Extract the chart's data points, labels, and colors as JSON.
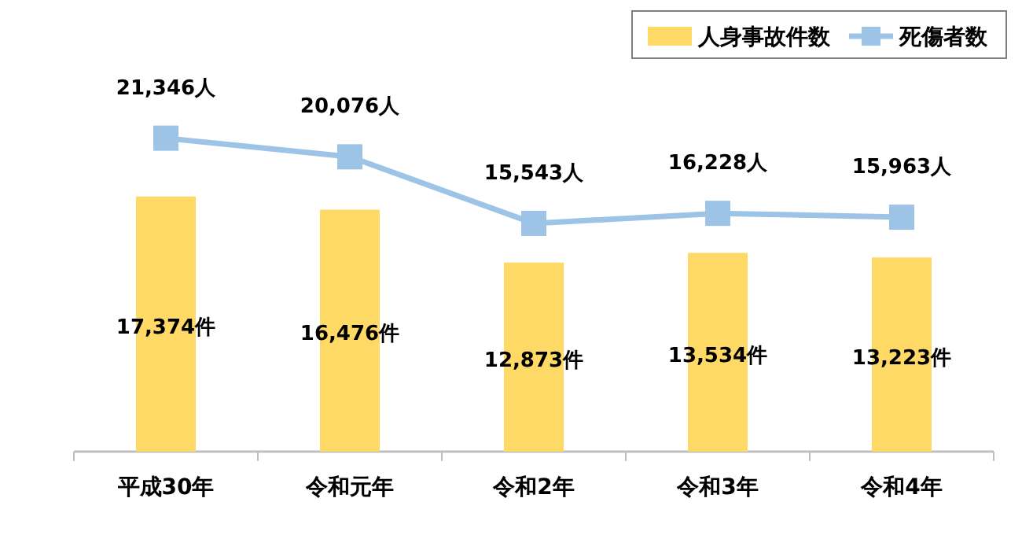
{
  "chart_data": {
    "type": "bar",
    "categories": [
      "平成30年",
      "令和元年",
      "令和2年",
      "令和3年",
      "令和4年"
    ],
    "series": [
      {
        "name": "人身事故件数",
        "color": "#ffd966",
        "values": [
          17374,
          16476,
          12873,
          13534,
          13223
        ],
        "value_labels": [
          "17,374件",
          "16,476件",
          "12,873件",
          "13,534件",
          "13,223件"
        ]
      },
      {
        "name": "死傷者数",
        "type": "line",
        "color": "#9dc3e6",
        "values": [
          21346,
          20076,
          15543,
          16228,
          15963
        ],
        "value_labels": [
          "21,346人",
          "20,076人",
          "15,543人",
          "16,228人",
          "15,963人"
        ]
      }
    ],
    "marker": "square",
    "legend": "top right"
  }
}
